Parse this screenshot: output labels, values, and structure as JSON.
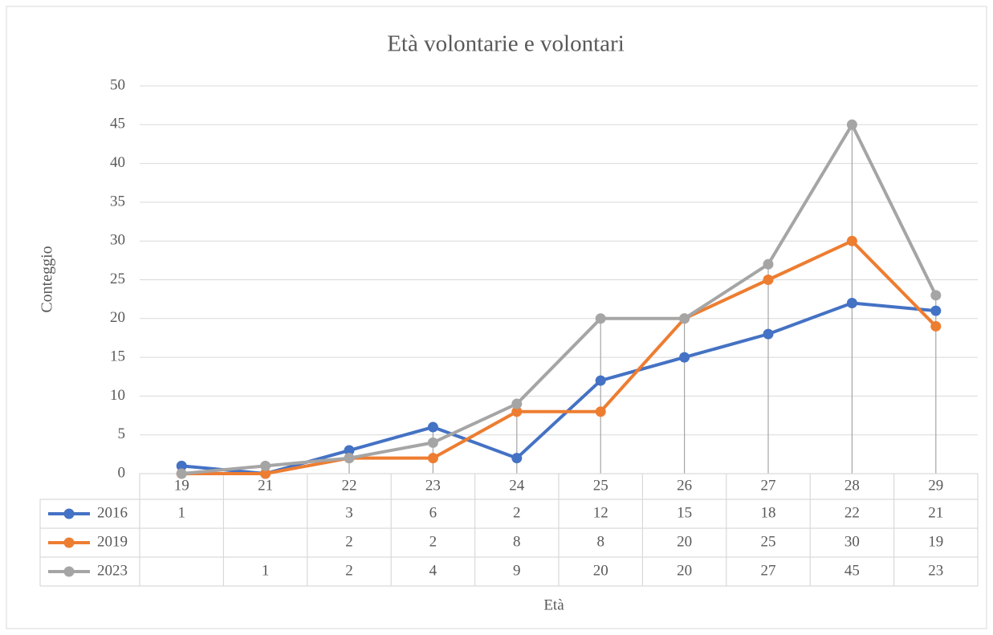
{
  "chart_data": {
    "type": "line",
    "title": "Età volontarie e volontari",
    "x_label": "Età",
    "y_label": "Conteggio",
    "categories": [
      "19",
      "21",
      "22",
      "23",
      "24",
      "25",
      "26",
      "27",
      "28",
      "29"
    ],
    "series": [
      {
        "name": "2016",
        "color": "#4472c4",
        "values": [
          1,
          null,
          3,
          6,
          2,
          12,
          15,
          18,
          22,
          21
        ]
      },
      {
        "name": "2019",
        "color": "#ed7d31",
        "values": [
          null,
          null,
          2,
          2,
          8,
          8,
          20,
          25,
          30,
          19
        ]
      },
      {
        "name": "2023",
        "color": "#a5a5a5",
        "values": [
          null,
          1,
          2,
          4,
          9,
          20,
          20,
          27,
          45,
          23
        ]
      }
    ],
    "ylim": [
      0,
      50
    ],
    "yticks": [
      0,
      5,
      10,
      15,
      20,
      25,
      30,
      35,
      40,
      45,
      50
    ],
    "grid": true,
    "show_empty_as": "zero",
    "drop_lines": true,
    "data_table": true
  }
}
